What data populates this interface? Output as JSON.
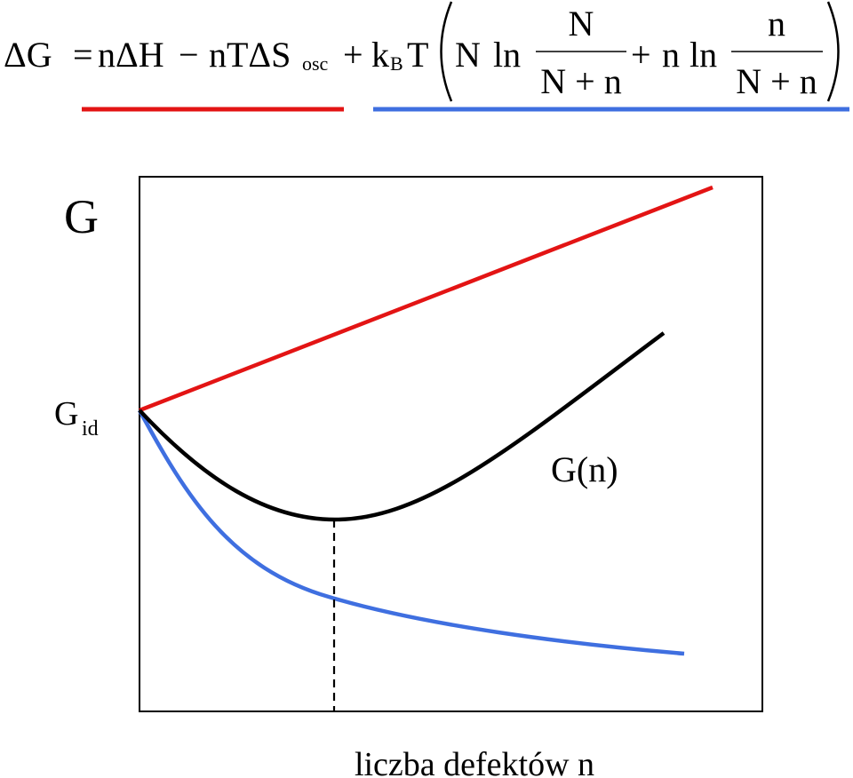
{
  "equation": {
    "lhs": "ΔG",
    "eq": "=",
    "enthalpy": "nΔH",
    "minus": "−",
    "entropy_prefix": "nTΔS",
    "entropy_sub": "osc",
    "plus": "+",
    "k": "k",
    "k_sub": "B",
    "T": "T",
    "N": "N",
    "ln": "ln",
    "n": "n",
    "N_plus_n": "N + n"
  },
  "diagram": {
    "y_axis_symbol": "G",
    "g_id_main": "G",
    "g_id_sub": "id",
    "curve_label": "G(n)",
    "x_axis_label": "liczba defektów n"
  },
  "colors": {
    "enthalpy_term": "#e31414",
    "configurational_term": "#3f6fe0",
    "total": "#000000"
  }
}
